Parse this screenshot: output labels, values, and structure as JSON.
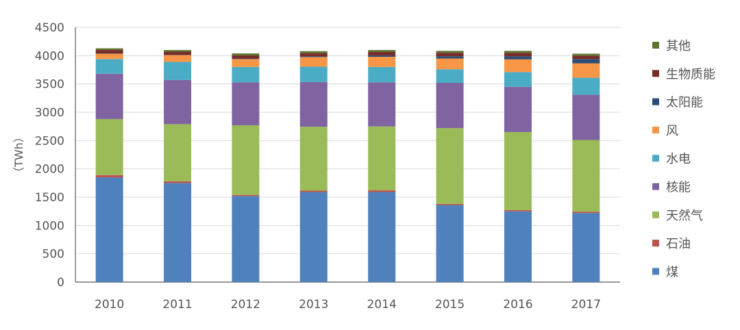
{
  "chart_data": {
    "type": "bar",
    "stacked": true,
    "title": "",
    "xlabel": "",
    "ylabel": "（TWh）",
    "ylim": [
      0,
      4500
    ],
    "yticks": [
      0,
      500,
      1000,
      1500,
      2000,
      2500,
      3000,
      3500,
      4000,
      4500
    ],
    "grid": true,
    "legend_position": "right",
    "categories": [
      "2010",
      "2011",
      "2012",
      "2013",
      "2014",
      "2015",
      "2016",
      "2017"
    ],
    "series": [
      {
        "name": "煤",
        "color": "#4f81bd",
        "values": [
          1850,
          1750,
          1520,
          1590,
          1590,
          1360,
          1250,
          1220
        ]
      },
      {
        "name": "石油",
        "color": "#c0504d",
        "values": [
          40,
          30,
          20,
          25,
          30,
          20,
          20,
          20
        ]
      },
      {
        "name": "天然气",
        "color": "#9bbb59",
        "values": [
          990,
          1010,
          1230,
          1130,
          1130,
          1340,
          1380,
          1270
        ]
      },
      {
        "name": "核能",
        "color": "#8064a2",
        "values": [
          800,
          780,
          760,
          790,
          780,
          800,
          800,
          800
        ]
      },
      {
        "name": "水电",
        "color": "#4bacc6",
        "values": [
          260,
          320,
          270,
          270,
          270,
          240,
          260,
          300
        ]
      },
      {
        "name": "风",
        "color": "#f79646",
        "values": [
          95,
          120,
          140,
          170,
          180,
          190,
          225,
          255
        ]
      },
      {
        "name": "太阳能",
        "color": "#2c4d75",
        "values": [
          5,
          5,
          10,
          15,
          25,
          40,
          55,
          75
        ]
      },
      {
        "name": "生物质能",
        "color": "#772c2a",
        "values": [
          60,
          55,
          55,
          55,
          60,
          60,
          60,
          60
        ]
      },
      {
        "name": "其他",
        "color": "#5f7530",
        "values": [
          30,
          30,
          35,
          35,
          35,
          35,
          35,
          35
        ]
      }
    ]
  }
}
